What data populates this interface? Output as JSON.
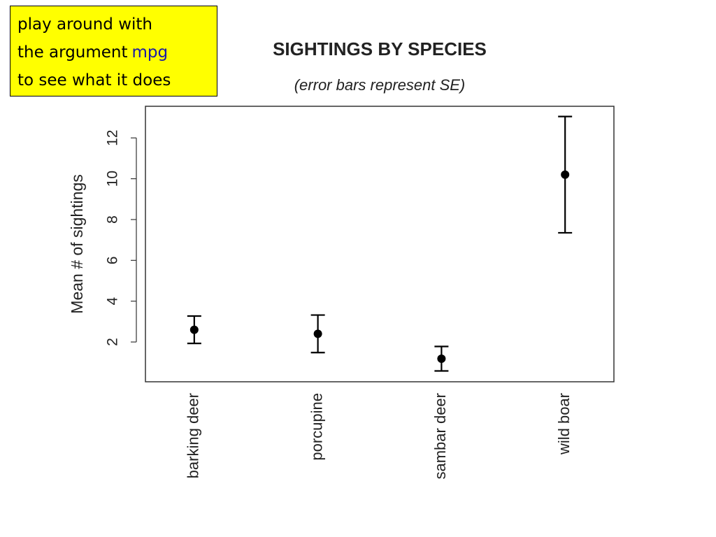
{
  "note": {
    "line1": "play around with",
    "line2": "the argument",
    "code": "mpg",
    "line3": "to see what it does"
  },
  "chart_data": {
    "type": "errorbar",
    "title": "SIGHTINGS BY SPECIES",
    "subtitle": "(error bars represent SE)",
    "y_label": "Mean # of sightings",
    "categories": [
      "barking deer",
      "porcupine",
      "sambar deer",
      "wild boar"
    ],
    "values": [
      2.6,
      2.4,
      1.18,
      10.2
    ],
    "errors": [
      0.67,
      0.92,
      0.6,
      2.85
    ],
    "color": "#000000",
    "ylim": [
      0.05,
      13.55
    ],
    "yticks": [
      2,
      4,
      6,
      8,
      10,
      12
    ],
    "grid": false
  }
}
